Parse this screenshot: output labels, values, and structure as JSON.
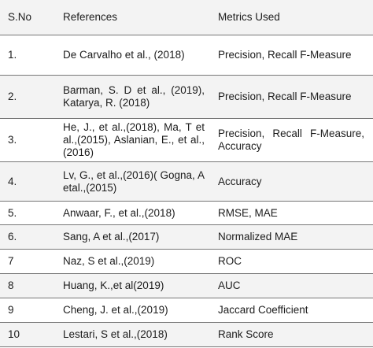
{
  "header": {
    "sno": "S.No",
    "references": "References",
    "metrics": "Metrics Used"
  },
  "rows": [
    {
      "sno": "1.",
      "references": "De Carvalho et al., (2018)",
      "metrics": "Precision, Recall F-Measure"
    },
    {
      "sno": "2.",
      "references": "Barman, S. D et al., (2019), Katarya, R. (2018)",
      "metrics": "Precision, Recall F-Measure"
    },
    {
      "sno": "3.",
      "references": "He, J., et al.,(2018), Ma, T et al.,(2015), Aslanian, E., et al.,(2016)",
      "metrics": "Precision, Recall F-Measure, Accuracy"
    },
    {
      "sno": "4.",
      "references": "Lv, G., et al.,(2016)( Gogna, A etal.,(2015)",
      "metrics": "Accuracy"
    },
    {
      "sno": "5.",
      "references": "Anwaar, F., et al.,(2018)",
      "metrics": "RMSE, MAE"
    },
    {
      "sno": "6.",
      "references": "Sang, A et al.,(2017)",
      "metrics": "Normalized MAE"
    },
    {
      "sno": "7",
      "references": "Naz, S et al.,(2019)",
      "metrics": "ROC"
    },
    {
      "sno": "8",
      "references": "Huang, K.,et al(2019)",
      "metrics": "AUC"
    },
    {
      "sno": "9",
      "references": "Cheng, J. et al.,(2019)",
      "metrics": "Jaccard Coefficient"
    },
    {
      "sno": "10",
      "references": "Lestari, S et al.,(2018)",
      "metrics": "Rank Score"
    }
  ]
}
